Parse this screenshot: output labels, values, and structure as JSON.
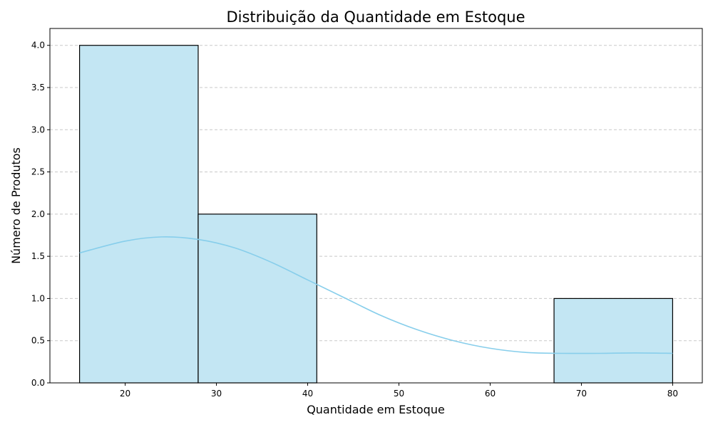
{
  "chart_data": {
    "type": "bar",
    "title": "Distribuição da Quantidade em Estoque",
    "xlabel": "Quantidade em Estoque",
    "ylabel": "Número de Produtos",
    "xlim": [
      11.75,
      83.25
    ],
    "ylim": [
      0,
      4.2
    ],
    "x_ticks": [
      "20",
      "30",
      "40",
      "50",
      "60",
      "70",
      "80"
    ],
    "y_ticks": [
      "0.0",
      "0.5",
      "1.0",
      "1.5",
      "2.0",
      "2.5",
      "3.0",
      "3.5",
      "4.0"
    ],
    "grid": "y-dashed",
    "bins": [
      {
        "start": 15,
        "end": 28,
        "count": 4
      },
      {
        "start": 28,
        "end": 41,
        "count": 2
      },
      {
        "start": 41,
        "end": 54,
        "count": 0
      },
      {
        "start": 54,
        "end": 67,
        "count": 0
      },
      {
        "start": 67,
        "end": 80,
        "count": 1
      }
    ],
    "kde": {
      "x": [
        15,
        20,
        24,
        28,
        32,
        36,
        40,
        44,
        48,
        52,
        56,
        60,
        64,
        68,
        72,
        76,
        80
      ],
      "y": [
        1.54,
        1.68,
        1.73,
        1.7,
        1.6,
        1.43,
        1.22,
        1.01,
        0.8,
        0.63,
        0.5,
        0.41,
        0.36,
        0.35,
        0.35,
        0.355,
        0.35
      ]
    },
    "colors": {
      "bar_fill": "#c3e6f3",
      "bar_edge": "#000000",
      "kde_line": "#87ceeb",
      "grid": "#c8c8c8"
    }
  }
}
